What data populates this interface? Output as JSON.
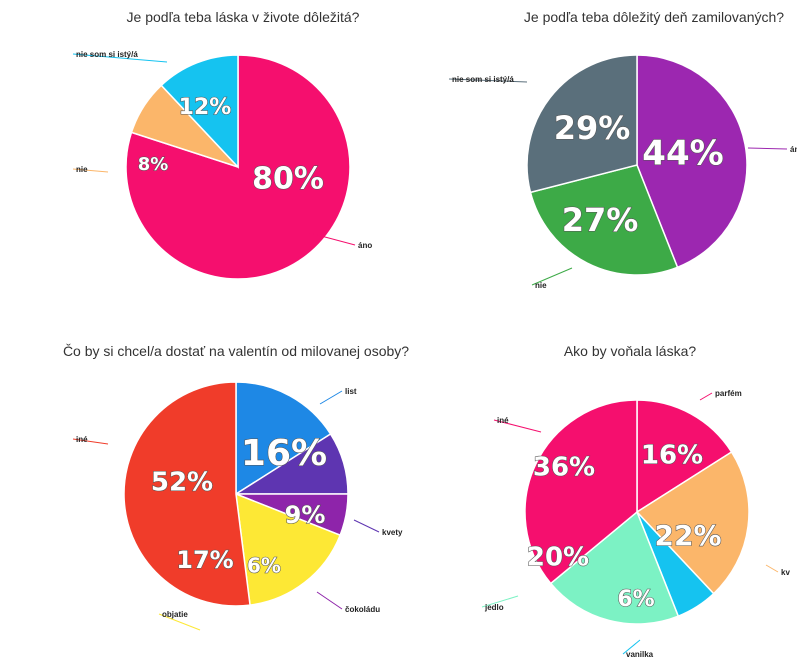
{
  "chart_data": [
    {
      "type": "pie",
      "title": "Je podľa teba láska v živote dôležitá?",
      "slices": [
        {
          "label": "áno",
          "value": 80,
          "pct_text": "80%",
          "color": "#f50f6e"
        },
        {
          "label": "nie",
          "value": 8,
          "pct_text": "8%",
          "color": "#fbb66a"
        },
        {
          "label": "nie som si istý/á",
          "value": 12,
          "pct_text": "12%",
          "color": "#15c3f0"
        }
      ]
    },
    {
      "type": "pie",
      "title": "Je podľa teba dôležitý deň zamilovaných?",
      "slices": [
        {
          "label": "áno",
          "value": 44,
          "pct_text": "44%",
          "color": "#9c27b0"
        },
        {
          "label": "nie",
          "value": 27,
          "pct_text": "27%",
          "color": "#3daa47"
        },
        {
          "label": "nie som si istý/á",
          "value": 29,
          "pct_text": "29%",
          "color": "#5a6f7b"
        }
      ]
    },
    {
      "type": "pie",
      "title": "Čo by si chcel/a dostať na valentín od milovanej osoby?",
      "slices": [
        {
          "label": "list",
          "value": 16,
          "pct_text": "16%",
          "color": "#1e88e5"
        },
        {
          "label": "kvety",
          "value": 9,
          "pct_text": "9%",
          "color": "#5e35b1"
        },
        {
          "label": "čokoládu",
          "value": 6,
          "pct_text": "6%",
          "color": "#8e24aa"
        },
        {
          "label": "objatie",
          "value": 17,
          "pct_text": "17%",
          "color": "#fde835"
        },
        {
          "label": "iné",
          "value": 52,
          "pct_text": "52%",
          "color": "#f03c2a"
        }
      ]
    },
    {
      "type": "pie",
      "title": "Ako by voňala láska?",
      "slices": [
        {
          "label": "parfém",
          "value": 16,
          "pct_text": "16%",
          "color": "#f50f6e"
        },
        {
          "label": "kv",
          "value": 22,
          "pct_text": "22%",
          "color": "#fbb66a"
        },
        {
          "label": "vanilka",
          "value": 6,
          "pct_text": "6%",
          "color": "#15c3f0"
        },
        {
          "label": "jedlo",
          "value": 20,
          "pct_text": "20%",
          "color": "#7cf2c4"
        },
        {
          "label": "iné",
          "value": 36,
          "pct_text": "36%",
          "color": "#f50f6e"
        }
      ]
    }
  ]
}
